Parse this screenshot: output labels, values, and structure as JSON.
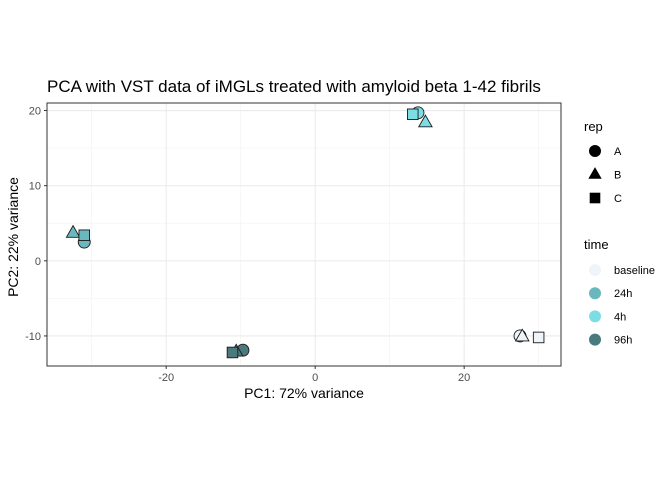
{
  "chart_data": {
    "type": "scatter",
    "title": "PCA with VST data of iMGLs treated with amyloid beta 1-42 fibrils",
    "xlabel": "PC1: 72% variance",
    "ylabel": "PC2: 22% variance",
    "xlim": [
      -36,
      33
    ],
    "ylim": [
      -14,
      21
    ],
    "x_ticks": [
      -20,
      0,
      20
    ],
    "y_ticks": [
      -10,
      0,
      10,
      20
    ],
    "x_tick_labels": [
      "-20",
      "0",
      "20"
    ],
    "y_tick_labels": [
      "-10",
      "0",
      "10",
      "20"
    ],
    "grid": true,
    "legend_position": "right",
    "legends": {
      "rep": {
        "title": "rep",
        "items": [
          {
            "label": "A",
            "shape": "circle"
          },
          {
            "label": "B",
            "shape": "triangle"
          },
          {
            "label": "C",
            "shape": "square"
          }
        ]
      },
      "time": {
        "title": "time",
        "items": [
          {
            "label": "baseline",
            "color": "#EEF4FA"
          },
          {
            "label": "24h",
            "color": "#6BB7BE"
          },
          {
            "label": "4h",
            "color": "#7DDDE4"
          },
          {
            "label": "96h",
            "color": "#4A7A7C"
          }
        ]
      }
    },
    "points": [
      {
        "x": 27.5,
        "y": -10.0,
        "rep": "A",
        "time": "baseline"
      },
      {
        "x": 27.8,
        "y": -10.1,
        "rep": "B",
        "time": "baseline"
      },
      {
        "x": 30.0,
        "y": -10.2,
        "rep": "C",
        "time": "baseline"
      },
      {
        "x": -31.0,
        "y": 2.5,
        "rep": "A",
        "time": "24h"
      },
      {
        "x": -32.5,
        "y": 3.7,
        "rep": "B",
        "time": "24h"
      },
      {
        "x": -31.0,
        "y": 3.4,
        "rep": "C",
        "time": "24h"
      },
      {
        "x": 13.8,
        "y": 19.7,
        "rep": "A",
        "time": "4h"
      },
      {
        "x": 14.8,
        "y": 18.4,
        "rep": "B",
        "time": "4h"
      },
      {
        "x": 13.1,
        "y": 19.5,
        "rep": "C",
        "time": "4h"
      },
      {
        "x": -9.7,
        "y": -11.9,
        "rep": "A",
        "time": "96h"
      },
      {
        "x": -10.6,
        "y": -12.1,
        "rep": "B",
        "time": "96h"
      },
      {
        "x": -11.1,
        "y": -12.2,
        "rep": "C",
        "time": "96h"
      }
    ]
  }
}
